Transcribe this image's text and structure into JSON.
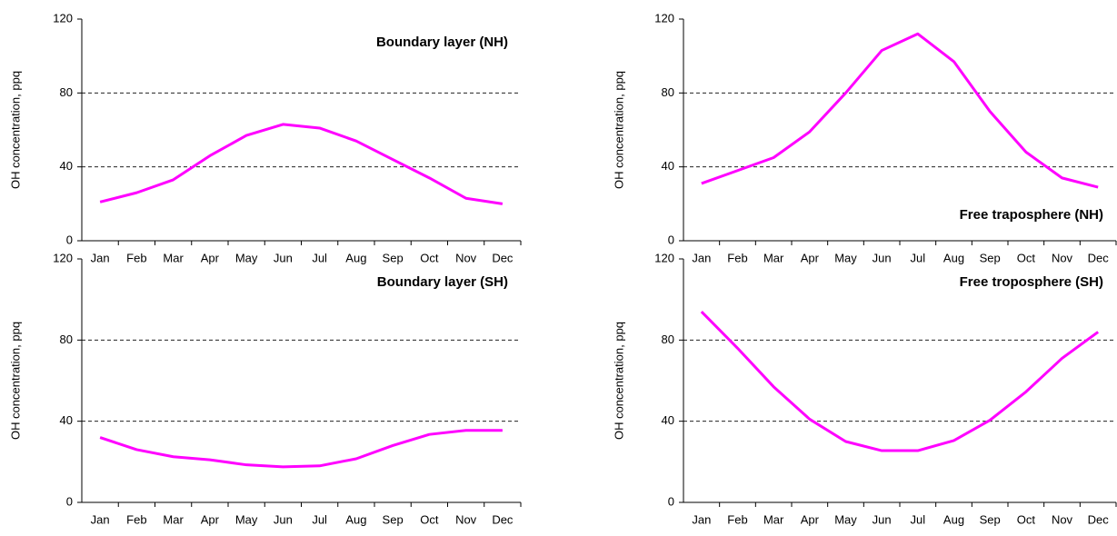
{
  "chart_data": [
    {
      "type": "line",
      "title": "Boundary layer (NH)",
      "title_corner": "top-right",
      "y_label": "OH concentration, ppq",
      "categories": [
        "Jan",
        "Feb",
        "Mar",
        "Apr",
        "May",
        "Jun",
        "Jul",
        "Aug",
        "Sep",
        "Oct",
        "Nov",
        "Dec"
      ],
      "values": [
        21,
        26,
        33,
        46,
        57,
        63,
        61,
        54,
        44,
        34,
        23,
        20
      ],
      "color": "#ff00ff",
      "ylim": [
        0,
        120
      ],
      "yticks": [
        0,
        40,
        80,
        120
      ],
      "grid": true
    },
    {
      "type": "line",
      "title": "Free traposphere (NH)",
      "title_corner": "bottom-right",
      "y_label": "OH concentration, ppq",
      "categories": [
        "Jan",
        "Feb",
        "Mar",
        "Apr",
        "May",
        "Jun",
        "Jul",
        "Aug",
        "Sep",
        "Oct",
        "Nov",
        "Dec"
      ],
      "values": [
        31,
        38,
        45,
        59,
        80,
        103,
        112,
        97,
        70,
        48,
        34,
        29
      ],
      "color": "#ff00ff",
      "ylim": [
        0,
        120
      ],
      "yticks": [
        0,
        40,
        80,
        120
      ],
      "grid": true
    },
    {
      "type": "line",
      "title": "Boundary layer (SH)",
      "title_corner": "top-right",
      "y_label": "OH concentration, ppq",
      "categories": [
        "Jan",
        "Feb",
        "Mar",
        "Apr",
        "May",
        "Jun",
        "Jul",
        "Aug",
        "Sep",
        "Oct",
        "Nov",
        "Dec"
      ],
      "values": [
        32,
        26,
        22.5,
        21,
        18.5,
        17.5,
        18,
        21.5,
        28,
        33.5,
        35.5,
        35.5
      ],
      "color": "#ff00ff",
      "ylim": [
        0,
        120
      ],
      "yticks": [
        0,
        40,
        80,
        120
      ],
      "grid": true
    },
    {
      "type": "line",
      "title": "Free troposphere (SH)",
      "title_corner": "top-right",
      "y_label": "OH concentration, ppq",
      "categories": [
        "Jan",
        "Feb",
        "Mar",
        "Apr",
        "May",
        "Jun",
        "Jul",
        "Aug",
        "Sep",
        "Oct",
        "Nov",
        "Dec"
      ],
      "values": [
        94,
        76,
        57,
        41,
        30,
        25.5,
        25.5,
        30.5,
        40.5,
        54.5,
        71,
        84
      ],
      "color": "#ff00ff",
      "ylim": [
        0,
        120
      ],
      "yticks": [
        0,
        40,
        80,
        120
      ],
      "grid": true
    }
  ]
}
